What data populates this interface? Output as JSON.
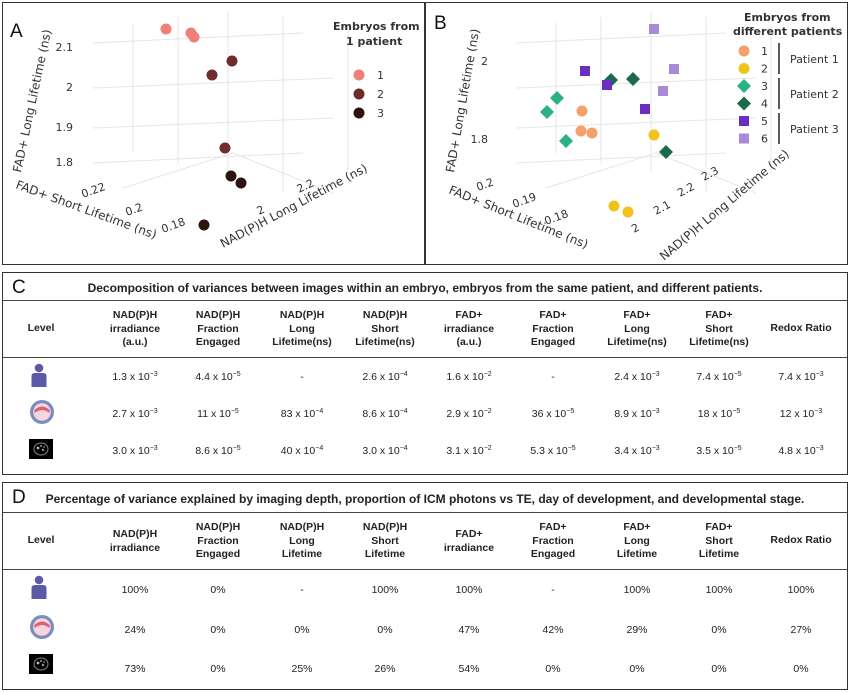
{
  "panelA": {
    "label": "A",
    "legend_title": [
      "Embryos from",
      "1 patient"
    ],
    "axes": {
      "z_label": "FAD+ Long Lifetime (ns)",
      "x_label": "FAD+ Short Lifetime (ns)",
      "y_label": "NAD(P)H Long Lifetime (ns)",
      "z_ticks": [
        "2.1",
        "2",
        "1.9",
        "1.8"
      ],
      "x_ticks": [
        "0.22",
        "0.2",
        "0.18"
      ],
      "y_ticks": [
        "2.2",
        "2"
      ]
    },
    "series": [
      {
        "name": "1",
        "color": "#f07f78"
      },
      {
        "name": "2",
        "color": "#6e2c2a"
      },
      {
        "name": "3",
        "color": "#2c1510"
      }
    ]
  },
  "panelB": {
    "label": "B",
    "legend_title": [
      "Embryos from",
      "different patients"
    ],
    "axes": {
      "z_label": "FAD+ Long Lifetime (ns)",
      "x_label": "FAD+ Short Lifetime (ns)",
      "y_label": "NAD(P)H Long Lifetime (ns)",
      "z_ticks": [
        "2",
        "1.8"
      ],
      "x_ticks": [
        "0.2",
        "0.19",
        "0.18"
      ],
      "y_ticks": [
        "2.3",
        "2.2",
        "2.1",
        "2"
      ]
    },
    "series": [
      {
        "name": "1",
        "color": "#f4a06a",
        "shape": "circle"
      },
      {
        "name": "2",
        "color": "#f0c21a",
        "shape": "circle"
      },
      {
        "name": "3",
        "color": "#2ab082",
        "shape": "diamond"
      },
      {
        "name": "4",
        "color": "#1b6a4a",
        "shape": "diamond"
      },
      {
        "name": "5",
        "color": "#6a2fbf",
        "shape": "square"
      },
      {
        "name": "6",
        "color": "#a98ad8",
        "shape": "square"
      }
    ],
    "groups": [
      "Patient 1",
      "Patient 2",
      "Patient 3"
    ]
  },
  "tableC": {
    "label": "C",
    "title": "Decomposition of variances between images within an embryo, embryos from the same patient, and different patients.",
    "headers": [
      "Level",
      "NAD(P)H\nirradiance\n(a.u.)",
      "NAD(P)H\nFraction\nEngaged",
      "NAD(P)H\nLong\nLifetime(ns)",
      "NAD(P)H\nShort\nLifetime(ns)",
      "FAD+\nirradiance\n(a.u.)",
      "FAD+\nFraction\nEngaged",
      "FAD+\nLong\nLifetime(ns)",
      "FAD+\nShort\nLifetime(ns)",
      "Redox Ratio"
    ],
    "rows": [
      [
        "1.3 x 10^-3",
        "4.4 x 10^-5",
        "-",
        "2.6 x 10^-4",
        "1.6 x 10^-2",
        "-",
        "2.4 x 10^-3",
        "7.4 x 10^-5",
        "7.4 x 10^-3"
      ],
      [
        "2.7 x 10^-3",
        "11 x 10^-5",
        "83 x 10^-4",
        "8.6 x 10^-4",
        "2.9 x 10^-2",
        "36 x 10^-5",
        "8.9 x 10^-3",
        "18 x 10^-5",
        "12 x 10^-3"
      ],
      [
        "3.0 x 10^-3",
        "8.6 x 10^-5",
        "40 x 10^-4",
        "3.0 x 10^-4",
        "3.1 x 10^-2",
        "5.3 x 10^-5",
        "3.4 x 10^-3",
        "3.5 x 10^-5",
        "4.8 x 10^-3"
      ]
    ]
  },
  "tableD": {
    "label": "D",
    "title": "Percentage of variance explained by imaging depth, proportion of ICM photons vs TE,  day of development, and developmental stage.",
    "headers": [
      "Level",
      "NAD(P)H\nirradiance",
      "NAD(P)H\nFraction\nEngaged",
      "NAD(P)H\nLong\nLifetime",
      "NAD(P)H\nShort\nLifetime",
      "FAD+\nirradiance",
      "FAD+\nFraction\nEngaged",
      "FAD+\nLong\nLifetime",
      "FAD+\nShort\nLifetime",
      "Redox Ratio"
    ],
    "rows": [
      [
        "100%",
        "0%",
        "-",
        "100%",
        "100%",
        "-",
        "100%",
        "100%",
        "100%"
      ],
      [
        "24%",
        "0%",
        "0%",
        "0%",
        "47%",
        "42%",
        "29%",
        "0%",
        "27%"
      ],
      [
        "73%",
        "0%",
        "25%",
        "26%",
        "54%",
        "0%",
        "0%",
        "0%",
        "0%"
      ]
    ]
  },
  "level_icons": [
    "person-icon",
    "embryo-icon",
    "microscopy-image-icon"
  ]
}
